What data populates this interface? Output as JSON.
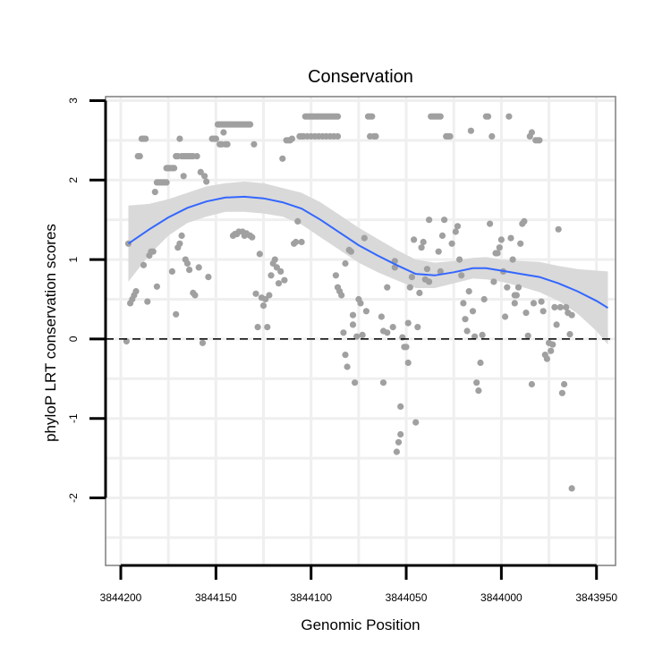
{
  "chart_data": {
    "type": "scatter",
    "title": "Conservation",
    "xlabel": "Genomic Position",
    "ylabel": "phyloP LRT conservation scores",
    "x_reversed": true,
    "xlim": [
      3844208,
      3843940
    ],
    "ylim": [
      -2.85,
      3.05
    ],
    "xticks": [
      3844200,
      3844150,
      3844100,
      3844050,
      3844000,
      3843950
    ],
    "xtick_labels": [
      "3844200",
      "3844150",
      "3844100",
      "3844050",
      "3844000",
      "3843950"
    ],
    "yticks": [
      -2,
      -1,
      0,
      1,
      2,
      3
    ],
    "ytick_labels": [
      "-2",
      "-1",
      "0",
      "1",
      "2",
      "3"
    ],
    "reference_line": {
      "y": 0,
      "style": "dashed"
    },
    "grid": true,
    "colors": {
      "points": "#a0a0a0",
      "smooth": "#3366ff",
      "band": "#d9d9d9",
      "grid": "#efefef",
      "frame": "#7f7f7f"
    },
    "smooth": {
      "x": [
        3844196,
        3844185,
        3844175,
        3844165,
        3844155,
        3844145,
        3844135,
        3844125,
        3844115,
        3844105,
        3844095,
        3844085,
        3844075,
        3844065,
        3844055,
        3844045,
        3844035,
        3844025,
        3844015,
        3844008,
        3844000,
        3843990,
        3843980,
        3843970,
        3843960,
        3843950,
        3843944
      ],
      "y": [
        1.2,
        1.38,
        1.53,
        1.65,
        1.73,
        1.78,
        1.79,
        1.77,
        1.72,
        1.64,
        1.5,
        1.34,
        1.18,
        1.05,
        0.93,
        0.82,
        0.8,
        0.84,
        0.89,
        0.89,
        0.86,
        0.82,
        0.78,
        0.7,
        0.6,
        0.48,
        0.39
      ],
      "upper": [
        1.68,
        1.7,
        1.76,
        1.84,
        1.92,
        1.96,
        1.98,
        1.96,
        1.9,
        1.84,
        1.72,
        1.56,
        1.4,
        1.26,
        1.12,
        1.0,
        0.96,
        0.98,
        1.02,
        1.03,
        1.0,
        0.98,
        0.97,
        0.92,
        0.88,
        0.86,
        0.85
      ],
      "lower": [
        0.72,
        1.06,
        1.3,
        1.46,
        1.54,
        1.6,
        1.6,
        1.58,
        1.54,
        1.44,
        1.28,
        1.12,
        0.96,
        0.84,
        0.74,
        0.64,
        0.64,
        0.7,
        0.76,
        0.75,
        0.72,
        0.66,
        0.59,
        0.48,
        0.32,
        0.1,
        -0.07
      ]
    },
    "points": [
      [
        3844196,
        1.2
      ],
      [
        3844197,
        -0.03
      ],
      [
        3844195,
        0.45
      ],
      [
        3844194,
        0.5
      ],
      [
        3844193,
        0.55
      ],
      [
        3844192,
        0.6
      ],
      [
        3844191,
        2.3
      ],
      [
        3844190,
        2.3
      ],
      [
        3844189,
        2.52
      ],
      [
        3844188,
        2.52
      ],
      [
        3844187,
        2.52
      ],
      [
        3844188,
        0.93
      ],
      [
        3844186,
        0.47
      ],
      [
        3844185,
        1.05
      ],
      [
        3844184,
        1.1
      ],
      [
        3844183,
        1.1
      ],
      [
        3844182,
        1.85
      ],
      [
        3844181,
        1.97
      ],
      [
        3844180,
        1.97
      ],
      [
        3844179,
        1.97
      ],
      [
        3844178,
        1.97
      ],
      [
        3844177,
        1.97
      ],
      [
        3844176,
        1.97
      ],
      [
        3844181,
        0.66
      ],
      [
        3844176,
        2.15
      ],
      [
        3844175,
        2.15
      ],
      [
        3844174,
        2.15
      ],
      [
        3844173,
        2.15
      ],
      [
        3844172,
        2.15
      ],
      [
        3844171,
        2.3
      ],
      [
        3844170,
        2.3
      ],
      [
        3844169,
        2.52
      ],
      [
        3844168,
        2.3
      ],
      [
        3844167,
        2.3
      ],
      [
        3844166,
        2.3
      ],
      [
        3844165,
        2.3
      ],
      [
        3844164,
        2.3
      ],
      [
        3844163,
        2.3
      ],
      [
        3844162,
        2.3
      ],
      [
        3844160,
        2.3
      ],
      [
        3844170,
        1.15
      ],
      [
        3844169,
        1.2
      ],
      [
        3844168,
        1.3
      ],
      [
        3844171,
        0.31
      ],
      [
        3844173,
        0.85
      ],
      [
        3844167,
        2.05
      ],
      [
        3844166,
        1.0
      ],
      [
        3844165,
        0.95
      ],
      [
        3844164,
        0.87
      ],
      [
        3844162,
        0.58
      ],
      [
        3844161,
        0.55
      ],
      [
        3844159,
        0.9
      ],
      [
        3844158,
        2.1
      ],
      [
        3844157,
        -0.05
      ],
      [
        3844156,
        2.05
      ],
      [
        3844155,
        1.98
      ],
      [
        3844154,
        0.78
      ],
      [
        3844152,
        2.52
      ],
      [
        3844151,
        2.52
      ],
      [
        3844150,
        2.52
      ],
      [
        3844149,
        2.7
      ],
      [
        3844148,
        2.7
      ],
      [
        3844147,
        2.7
      ],
      [
        3844146,
        2.7
      ],
      [
        3844145,
        2.7
      ],
      [
        3844144,
        2.7
      ],
      [
        3844143,
        2.7
      ],
      [
        3844142,
        2.7
      ],
      [
        3844141,
        2.7
      ],
      [
        3844140,
        2.7
      ],
      [
        3844139,
        2.7
      ],
      [
        3844138,
        2.7
      ],
      [
        3844137,
        2.7
      ],
      [
        3844136,
        2.7
      ],
      [
        3844135,
        2.7
      ],
      [
        3844134,
        2.7
      ],
      [
        3844133,
        2.7
      ],
      [
        3844132,
        2.7
      ],
      [
        3844148,
        2.45
      ],
      [
        3844147,
        2.45
      ],
      [
        3844145,
        2.45
      ],
      [
        3844144,
        2.45
      ],
      [
        3844146,
        2.6
      ],
      [
        3844141,
        1.3
      ],
      [
        3844140,
        1.32
      ],
      [
        3844139,
        1.32
      ],
      [
        3844138,
        1.35
      ],
      [
        3844136,
        1.35
      ],
      [
        3844135,
        1.3
      ],
      [
        3844134,
        1.33
      ],
      [
        3844132,
        1.3
      ],
      [
        3844131,
        1.28
      ],
      [
        3844130,
        2.45
      ],
      [
        3844129,
        0.57
      ],
      [
        3844128,
        0.15
      ],
      [
        3844127,
        1.07
      ],
      [
        3844126,
        0.52
      ],
      [
        3844125,
        0.42
      ],
      [
        3844124,
        0.5
      ],
      [
        3844123,
        0.15
      ],
      [
        3844122,
        0.55
      ],
      [
        3844121,
        0.8
      ],
      [
        3844120,
        0.95
      ],
      [
        3844119,
        1.0
      ],
      [
        3844118,
        0.9
      ],
      [
        3844117,
        0.7
      ],
      [
        3844116,
        0.85
      ],
      [
        3844115,
        2.27
      ],
      [
        3844114,
        0.74
      ],
      [
        3844113,
        2.5
      ],
      [
        3844112,
        2.5
      ],
      [
        3844111,
        2.5
      ],
      [
        3844110,
        2.52
      ],
      [
        3844109,
        1.2
      ],
      [
        3844108,
        1.22
      ],
      [
        3844107,
        1.48
      ],
      [
        3844106,
        2.55
      ],
      [
        3844105,
        2.55
      ],
      [
        3844105,
        1.22
      ],
      [
        3844104,
        2.55
      ],
      [
        3844103,
        2.8
      ],
      [
        3844102,
        2.8
      ],
      [
        3844101,
        2.8
      ],
      [
        3844100,
        2.8
      ],
      [
        3844099,
        2.8
      ],
      [
        3844098,
        2.8
      ],
      [
        3844097,
        2.8
      ],
      [
        3844096,
        2.8
      ],
      [
        3844095,
        2.8
      ],
      [
        3844094,
        2.8
      ],
      [
        3844093,
        2.8
      ],
      [
        3844092,
        2.8
      ],
      [
        3844091,
        2.8
      ],
      [
        3844090,
        2.8
      ],
      [
        3844089,
        2.8
      ],
      [
        3844088,
        2.8
      ],
      [
        3844087,
        2.8
      ],
      [
        3844086,
        2.8
      ],
      [
        3844102,
        2.55
      ],
      [
        3844100,
        2.55
      ],
      [
        3844098,
        2.55
      ],
      [
        3844096,
        2.55
      ],
      [
        3844094,
        2.55
      ],
      [
        3844092,
        2.55
      ],
      [
        3844090,
        2.55
      ],
      [
        3844088,
        2.55
      ],
      [
        3844086,
        2.55
      ],
      [
        3844087,
        0.8
      ],
      [
        3844086,
        0.65
      ],
      [
        3844085,
        0.6
      ],
      [
        3844084,
        0.55
      ],
      [
        3844083,
        0.08
      ],
      [
        3844082,
        -0.2
      ],
      [
        3844081,
        -0.35
      ],
      [
        3844082,
        0.95
      ],
      [
        3844080,
        1.12
      ],
      [
        3844079,
        1.1
      ],
      [
        3844078,
        0.18
      ],
      [
        3844078,
        0.3
      ],
      [
        3844077,
        -0.55
      ],
      [
        3844076,
        0.03
      ],
      [
        3844075,
        0.5
      ],
      [
        3844074,
        0.45
      ],
      [
        3844073,
        0.05
      ],
      [
        3844072,
        1.27
      ],
      [
        3844071,
        0.35
      ],
      [
        3844070,
        2.8
      ],
      [
        3844069,
        2.8
      ],
      [
        3844068,
        2.8
      ],
      [
        3844069,
        2.55
      ],
      [
        3844067,
        2.55
      ],
      [
        3844066,
        2.55
      ],
      [
        3844063,
        0.28
      ],
      [
        3844062,
        0.1
      ],
      [
        3844062,
        -0.55
      ],
      [
        3844060,
        0.08
      ],
      [
        3844060,
        0.65
      ],
      [
        3844057,
        0.15
      ],
      [
        3844056,
        0.98
      ],
      [
        3844056,
        0.9
      ],
      [
        3844055,
        -1.42
      ],
      [
        3844054,
        -1.3
      ],
      [
        3844053,
        -0.85
      ],
      [
        3844053,
        -1.2
      ],
      [
        3844052,
        0.02
      ],
      [
        3844051,
        -0.1
      ],
      [
        3844050,
        -0.1
      ],
      [
        3844049,
        -0.3
      ],
      [
        3844049,
        0.2
      ],
      [
        3844048,
        0.65
      ],
      [
        3844047,
        0.78
      ],
      [
        3844046,
        1.25
      ],
      [
        3844045,
        -1.05
      ],
      [
        3844044,
        0.15
      ],
      [
        3844043,
        0.58
      ],
      [
        3844042,
        1.15
      ],
      [
        3844041,
        1.22
      ],
      [
        3844040,
        0.75
      ],
      [
        3844039,
        0.88
      ],
      [
        3844038,
        1.5
      ],
      [
        3844038,
        0.72
      ],
      [
        3844037,
        2.8
      ],
      [
        3844036,
        2.8
      ],
      [
        3844035,
        2.8
      ],
      [
        3844034,
        2.8
      ],
      [
        3844033,
        2.8
      ],
      [
        3844032,
        2.8
      ],
      [
        3844033,
        1.1
      ],
      [
        3844032,
        0.85
      ],
      [
        3844031,
        1.3
      ],
      [
        3844030,
        1.5
      ],
      [
        3844029,
        2.55
      ],
      [
        3844028,
        2.55
      ],
      [
        3844027,
        2.55
      ],
      [
        3844026,
        1.2
      ],
      [
        3844024,
        1.35
      ],
      [
        3844023,
        1.42
      ],
      [
        3844022,
        1.0
      ],
      [
        3844021,
        0.8
      ],
      [
        3844020,
        0.45
      ],
      [
        3844019,
        0.25
      ],
      [
        3844018,
        0.1
      ],
      [
        3844017,
        0.6
      ],
      [
        3844016,
        2.62
      ],
      [
        3844015,
        0.35
      ],
      [
        3844014,
        0.03
      ],
      [
        3844013,
        -0.55
      ],
      [
        3844012,
        -0.65
      ],
      [
        3844011,
        -0.3
      ],
      [
        3844010,
        0.05
      ],
      [
        3844009,
        0.5
      ],
      [
        3844008,
        2.8
      ],
      [
        3844007,
        2.8
      ],
      [
        3844006,
        1.45
      ],
      [
        3844005,
        2.55
      ],
      [
        3844004,
        0.72
      ],
      [
        3844003,
        1.08
      ],
      [
        3844002,
        1.08
      ],
      [
        3844001,
        1.15
      ],
      [
        3844000,
        1.25
      ],
      [
        3843999,
        0.85
      ],
      [
        3843998,
        0.28
      ],
      [
        3843997,
        0.65
      ],
      [
        3843996,
        2.8
      ],
      [
        3843995,
        1.27
      ],
      [
        3843994,
        1.0
      ],
      [
        3843993,
        0.55
      ],
      [
        3843993,
        0.45
      ],
      [
        3843992,
        0.55
      ],
      [
        3843991,
        0.65
      ],
      [
        3843990,
        1.2
      ],
      [
        3843989,
        1.45
      ],
      [
        3843988,
        1.48
      ],
      [
        3843987,
        0.33
      ],
      [
        3843986,
        0.04
      ],
      [
        3843985,
        2.55
      ],
      [
        3843984,
        -0.57
      ],
      [
        3843984,
        2.6
      ],
      [
        3843983,
        0.45
      ],
      [
        3843982,
        2.5
      ],
      [
        3843981,
        2.5
      ],
      [
        3843980,
        2.5
      ],
      [
        3843979,
        0.47
      ],
      [
        3843978,
        0.35
      ],
      [
        3843977,
        -0.2
      ],
      [
        3843976,
        -0.25
      ],
      [
        3843975,
        -0.05
      ],
      [
        3843974,
        -0.15
      ],
      [
        3843973,
        -0.07
      ],
      [
        3843972,
        0.4
      ],
      [
        3843971,
        0.18
      ],
      [
        3843970,
        1.38
      ],
      [
        3843969,
        0.4
      ],
      [
        3843968,
        -0.68
      ],
      [
        3843967,
        -0.57
      ],
      [
        3843966,
        0.4
      ],
      [
        3843965,
        0.33
      ],
      [
        3843964,
        0.06
      ],
      [
        3843963,
        0.3
      ],
      [
        3843963,
        -1.88
      ]
    ]
  }
}
